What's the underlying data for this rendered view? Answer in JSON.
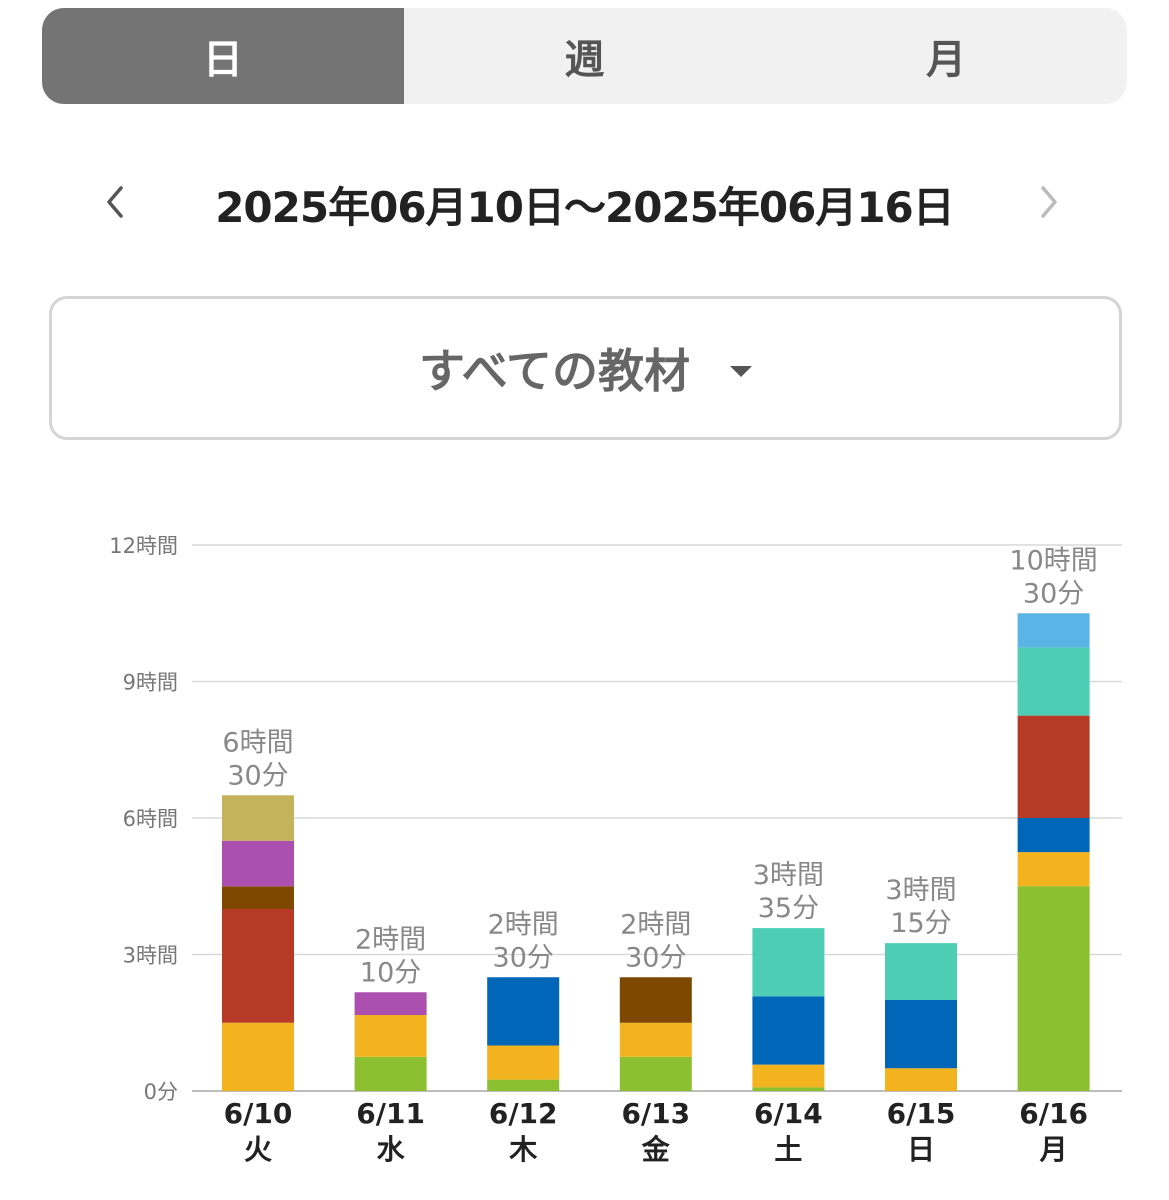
{
  "tabs": [
    {
      "label": "日",
      "active": true
    },
    {
      "label": "週",
      "active": false
    },
    {
      "label": "月",
      "active": false
    }
  ],
  "date_nav": {
    "range": "2025年06月10日～2025年06月16日",
    "prev_icon": "chevron-left-icon",
    "next_icon": "chevron-right-icon"
  },
  "material_selector": {
    "label": "すべての教材",
    "icon": "caret-down-icon"
  },
  "chart_data": {
    "type": "bar",
    "stacked": true,
    "unit": "hours",
    "ylim": [
      0,
      12
    ],
    "yticks": [
      {
        "value": 0,
        "label": "0分"
      },
      {
        "value": 3,
        "label": "3時間"
      },
      {
        "value": 6,
        "label": "6時間"
      },
      {
        "value": 9,
        "label": "9時間"
      },
      {
        "value": 12,
        "label": "12時間"
      }
    ],
    "grid": true,
    "categories": [
      "6/10",
      "6/11",
      "6/12",
      "6/13",
      "6/14",
      "6/15",
      "6/16"
    ],
    "weekdays": [
      "火",
      "水",
      "木",
      "金",
      "土",
      "日",
      "月"
    ],
    "totals": [
      [
        "6時間",
        "30分"
      ],
      [
        "2時間",
        "10分"
      ],
      [
        "2時間",
        "30分"
      ],
      [
        "2時間",
        "30分"
      ],
      [
        "3時間",
        "35分"
      ],
      [
        "3時間",
        "15分"
      ],
      [
        "10時間",
        "30分"
      ]
    ],
    "series": [
      {
        "color": "#8dc030",
        "values": [
          0,
          0.75,
          0.25,
          0.75,
          0.08,
          0,
          4.5
        ]
      },
      {
        "color": "#f2b31e",
        "values": [
          1.5,
          0.92,
          0.75,
          0.75,
          0.5,
          0.5,
          0.75
        ]
      },
      {
        "color": "#0066b8",
        "values": [
          0,
          0,
          1.5,
          0,
          1.5,
          1.5,
          0.75
        ]
      },
      {
        "color": "#b73a26",
        "values": [
          2.5,
          0,
          0,
          0,
          0,
          0,
          2.25
        ]
      },
      {
        "color": "#7f4800",
        "values": [
          0.5,
          0,
          0,
          1.0,
          0,
          0,
          0
        ]
      },
      {
        "color": "#ab50ae",
        "values": [
          1.0,
          0.5,
          0,
          0,
          0,
          0,
          0
        ]
      },
      {
        "color": "#c5b35c",
        "values": [
          1.0,
          0,
          0,
          0,
          0,
          0,
          0
        ]
      },
      {
        "color": "#4ccdb4",
        "values": [
          0,
          0,
          0,
          0,
          1.5,
          1.25,
          1.5
        ]
      },
      {
        "color": "#5ab4e5",
        "values": [
          0,
          0,
          0,
          0,
          0,
          0,
          0.75
        ]
      }
    ]
  }
}
